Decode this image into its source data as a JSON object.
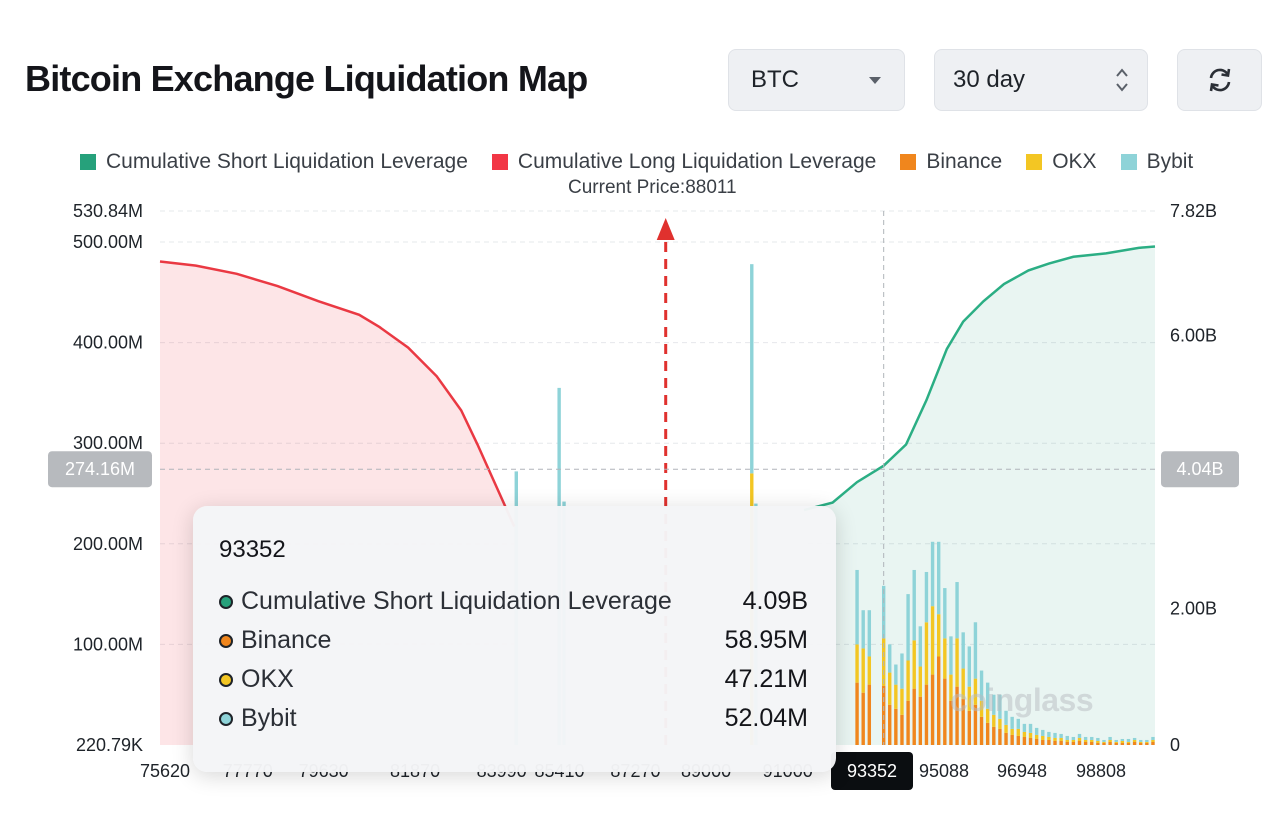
{
  "header": {
    "title": "Bitcoin Exchange Liquidation Map",
    "coin_select": "BTC",
    "period_select": "30 day"
  },
  "legend": [
    {
      "label": "Cumulative Short Liquidation Leverage",
      "color": "#26a17b"
    },
    {
      "label": "Cumulative Long Liquidation Leverage",
      "color": "#f23645"
    },
    {
      "label": "Binance",
      "color": "#f0861d"
    },
    {
      "label": "OKX",
      "color": "#f3c623"
    },
    {
      "label": "Bybit",
      "color": "#8ed3d8"
    }
  ],
  "current_price_label": "Current Price:88011",
  "watermark": "coinglass",
  "tooltip": {
    "title": "93352",
    "rows": [
      {
        "label": "Cumulative Short Liquidation Leverage",
        "value": "4.09B",
        "color": "#26a17b"
      },
      {
        "label": "Binance",
        "value": "58.95M",
        "color": "#f0861d"
      },
      {
        "label": "OKX",
        "value": "47.21M",
        "color": "#f3c623"
      },
      {
        "label": "Bybit",
        "value": "52.04M",
        "color": "#8ed3d8"
      }
    ]
  },
  "chart_data": {
    "type": "bar",
    "title": "Bitcoin Exchange Liquidation Map",
    "x_ticks": [
      "75620",
      "77770",
      "79630",
      "81870",
      "83990",
      "85410",
      "87270",
      "89000",
      "91000",
      "93352",
      "95088",
      "96948",
      "98808"
    ],
    "x_range": [
      75620,
      100000
    ],
    "current_price": 88011,
    "crosshair": {
      "x": "93352",
      "left_value": "274.16M",
      "right_value": "4.04B"
    },
    "y_left": {
      "ticks": [
        "530.84M",
        "500.00M",
        "400.00M",
        "300.00M",
        "200.00M",
        "100.00M",
        "220.79K"
      ],
      "tick_values": [
        530.84,
        500,
        400,
        300,
        200,
        100,
        0.22
      ],
      "range": [
        0,
        530.84
      ],
      "unit": "M"
    },
    "y_right": {
      "ticks": [
        "7.82B",
        "6.00B",
        "2.00B",
        "0"
      ],
      "tick_values": [
        7.82,
        6.0,
        2.0,
        0
      ],
      "range": [
        0,
        7.82
      ],
      "unit": "B"
    },
    "cumulative_long": {
      "name": "Cumulative Long Liquidation Leverage",
      "points": [
        [
          75620,
          7.08
        ],
        [
          76500,
          7.02
        ],
        [
          77500,
          6.9
        ],
        [
          78500,
          6.72
        ],
        [
          79500,
          6.5
        ],
        [
          80500,
          6.3
        ],
        [
          81000,
          6.12
        ],
        [
          81700,
          5.82
        ],
        [
          82400,
          5.4
        ],
        [
          83000,
          4.9
        ],
        [
          83400,
          4.4
        ],
        [
          83700,
          4.0
        ],
        [
          84000,
          3.6
        ],
        [
          84300,
          3.2
        ]
      ]
    },
    "cumulative_short": {
      "name": "Cumulative Short Liquidation Leverage",
      "points": [
        [
          91400,
          3.44
        ],
        [
          92100,
          3.55
        ],
        [
          92700,
          3.85
        ],
        [
          93352,
          4.09
        ],
        [
          93900,
          4.4
        ],
        [
          94400,
          5.05
        ],
        [
          94900,
          5.8
        ],
        [
          95300,
          6.2
        ],
        [
          95800,
          6.5
        ],
        [
          96300,
          6.75
        ],
        [
          96900,
          6.95
        ],
        [
          97400,
          7.05
        ],
        [
          98000,
          7.15
        ],
        [
          98800,
          7.2
        ],
        [
          99600,
          7.28
        ],
        [
          100000,
          7.3
        ]
      ]
    },
    "bars": {
      "columns": [
        {
          "x": 84350,
          "binance": 0,
          "okx": 0,
          "bybit": 272
        },
        {
          "x": 85400,
          "binance": 0,
          "okx": 0,
          "bybit": 355
        },
        {
          "x": 85520,
          "binance": 0,
          "okx": 0,
          "bybit": 242
        },
        {
          "x": 90120,
          "binance": 0,
          "okx": 270,
          "bybit": 208
        },
        {
          "x": 90220,
          "binance": 0,
          "okx": 0,
          "bybit": 240
        },
        {
          "x": 92700,
          "binance": 62,
          "okx": 38,
          "bybit": 74
        },
        {
          "x": 92850,
          "binance": 52,
          "okx": 44,
          "bybit": 38
        },
        {
          "x": 93000,
          "binance": 60,
          "okx": 28,
          "bybit": 46
        },
        {
          "x": 93352,
          "binance": 58.95,
          "okx": 47.21,
          "bybit": 52.04
        },
        {
          "x": 93500,
          "binance": 40,
          "okx": 32,
          "bybit": 28
        },
        {
          "x": 93650,
          "binance": 36,
          "okx": 24,
          "bybit": 20
        },
        {
          "x": 93800,
          "binance": 30,
          "okx": 26,
          "bybit": 35
        },
        {
          "x": 93950,
          "binance": 44,
          "okx": 40,
          "bybit": 66
        },
        {
          "x": 94100,
          "binance": 56,
          "okx": 48,
          "bybit": 70
        },
        {
          "x": 94250,
          "binance": 48,
          "okx": 30,
          "bybit": 40
        },
        {
          "x": 94400,
          "binance": 60,
          "okx": 62,
          "bybit": 50
        },
        {
          "x": 94550,
          "binance": 70,
          "okx": 68,
          "bybit": 64
        },
        {
          "x": 94700,
          "binance": 88,
          "okx": 42,
          "bybit": 72
        },
        {
          "x": 94850,
          "binance": 66,
          "okx": 40,
          "bybit": 50
        },
        {
          "x": 95000,
          "binance": 44,
          "okx": 26,
          "bybit": 38
        },
        {
          "x": 95150,
          "binance": 58,
          "okx": 48,
          "bybit": 56
        },
        {
          "x": 95300,
          "binance": 46,
          "okx": 30,
          "bybit": 36
        },
        {
          "x": 95450,
          "binance": 34,
          "okx": 24,
          "bybit": 40
        },
        {
          "x": 95600,
          "binance": 40,
          "okx": 26,
          "bybit": 56
        },
        {
          "x": 95750,
          "binance": 28,
          "okx": 16,
          "bybit": 30
        },
        {
          "x": 95900,
          "binance": 22,
          "okx": 14,
          "bybit": 26
        },
        {
          "x": 96050,
          "binance": 18,
          "okx": 12,
          "bybit": 20
        },
        {
          "x": 96200,
          "binance": 16,
          "okx": 10,
          "bybit": 24
        },
        {
          "x": 96350,
          "binance": 12,
          "okx": 8,
          "bybit": 14
        },
        {
          "x": 96500,
          "binance": 10,
          "okx": 6,
          "bybit": 12
        },
        {
          "x": 96650,
          "binance": 9,
          "okx": 7,
          "bybit": 10
        },
        {
          "x": 96800,
          "binance": 8,
          "okx": 5,
          "bybit": 8
        },
        {
          "x": 96950,
          "binance": 7,
          "okx": 5,
          "bybit": 9
        },
        {
          "x": 97100,
          "binance": 6,
          "okx": 4,
          "bybit": 7
        },
        {
          "x": 97250,
          "binance": 5,
          "okx": 4,
          "bybit": 6
        },
        {
          "x": 97400,
          "binance": 5,
          "okx": 3,
          "bybit": 5
        },
        {
          "x": 97550,
          "binance": 4,
          "okx": 3,
          "bybit": 5
        },
        {
          "x": 97700,
          "binance": 4,
          "okx": 3,
          "bybit": 4
        },
        {
          "x": 97850,
          "binance": 3,
          "okx": 2,
          "bybit": 4
        },
        {
          "x": 98000,
          "binance": 3,
          "okx": 2,
          "bybit": 3
        },
        {
          "x": 98150,
          "binance": 4,
          "okx": 3,
          "bybit": 4
        },
        {
          "x": 98300,
          "binance": 3,
          "okx": 2,
          "bybit": 3
        },
        {
          "x": 98450,
          "binance": 3,
          "okx": 2,
          "bybit": 3
        },
        {
          "x": 98600,
          "binance": 2,
          "okx": 2,
          "bybit": 3
        },
        {
          "x": 98750,
          "binance": 2,
          "okx": 1,
          "bybit": 2
        },
        {
          "x": 98900,
          "binance": 3,
          "okx": 2,
          "bybit": 3
        },
        {
          "x": 99050,
          "binance": 2,
          "okx": 1,
          "bybit": 2
        },
        {
          "x": 99200,
          "binance": 2,
          "okx": 2,
          "bybit": 2
        },
        {
          "x": 99350,
          "binance": 2,
          "okx": 1,
          "bybit": 3
        },
        {
          "x": 99500,
          "binance": 3,
          "okx": 2,
          "bybit": 2
        },
        {
          "x": 99650,
          "binance": 2,
          "okx": 1,
          "bybit": 2
        },
        {
          "x": 99800,
          "binance": 2,
          "okx": 1,
          "bybit": 2
        },
        {
          "x": 99950,
          "binance": 3,
          "okx": 2,
          "bybit": 3
        }
      ]
    },
    "grid": true
  }
}
